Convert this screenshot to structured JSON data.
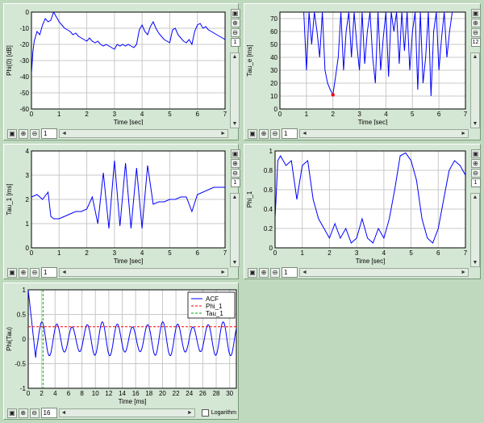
{
  "panels": {
    "p1": {
      "chart_data": {
        "type": "line",
        "xlabel": "Time [sec]",
        "ylabel": "Phi(0) [dB]",
        "xlim": [
          0,
          7
        ],
        "ylim": [
          -60,
          0
        ],
        "xticks": [
          "0",
          "1",
          "2",
          "3",
          "4",
          "5",
          "6",
          "7"
        ],
        "yticks": [
          "0",
          "-10",
          "-20",
          "-30",
          "-40",
          "-50",
          "-60"
        ],
        "grid": true,
        "series": [
          {
            "color": "#0000ff",
            "x": [
              0,
              0.05,
              0.1,
              0.2,
              0.3,
              0.4,
              0.5,
              0.6,
              0.7,
              0.8,
              0.9,
              1.0,
              1.1,
              1.2,
              1.3,
              1.4,
              1.5,
              1.6,
              1.7,
              1.8,
              1.9,
              2.0,
              2.1,
              2.2,
              2.3,
              2.4,
              2.5,
              2.6,
              2.7,
              2.8,
              2.9,
              3.0,
              3.1,
              3.2,
              3.3,
              3.4,
              3.5,
              3.6,
              3.7,
              3.8,
              3.9,
              4.0,
              4.1,
              4.2,
              4.3,
              4.4,
              4.5,
              4.6,
              4.7,
              4.8,
              4.9,
              5.0,
              5.1,
              5.2,
              5.3,
              5.4,
              5.5,
              5.6,
              5.7,
              5.8,
              5.9,
              6.0,
              6.1,
              6.2,
              6.3,
              6.4,
              6.5,
              6.6,
              6.7,
              6.8,
              6.9,
              7.0
            ],
            "y": [
              -38,
              -25,
              -18,
              -12,
              -14,
              -8,
              -4,
              -6,
              -5,
              0,
              -3,
              -6,
              -8,
              -10,
              -11,
              -12,
              -14,
              -13,
              -15,
              -16,
              -17,
              -18,
              -16,
              -18,
              -19,
              -18,
              -20,
              -21,
              -20,
              -21,
              -22,
              -23,
              -20,
              -21,
              -20,
              -21,
              -20,
              -21,
              -22,
              -20,
              -11,
              -8,
              -12,
              -14,
              -9,
              -6,
              -10,
              -13,
              -15,
              -17,
              -18,
              -19,
              -11,
              -10,
              -14,
              -16,
              -18,
              -19,
              -17,
              -20,
              -12,
              -8,
              -7,
              -10,
              -9,
              -11,
              -12,
              -13,
              -14,
              -15,
              -16,
              -17
            ]
          }
        ]
      },
      "vbar": {
        "page": "1"
      },
      "hbar": {
        "page": "1"
      }
    },
    "p2": {
      "chart_data": {
        "type": "line",
        "xlabel": "Time [sec]",
        "ylabel": "Tau_e [ms]",
        "xlim": [
          0,
          7
        ],
        "ylim": [
          0,
          75
        ],
        "xticks": [
          "0",
          "1",
          "2",
          "3",
          "4",
          "5",
          "6",
          "7"
        ],
        "yticks": [
          "0",
          "10",
          "20",
          "30",
          "40",
          "50",
          "60",
          "70"
        ],
        "grid": true,
        "marker": {
          "x": 2.0,
          "y": 11,
          "color": "#ff0000"
        },
        "series": [
          {
            "color": "#0000ff",
            "x": [
              0.9,
              1.0,
              1.1,
              1.2,
              1.3,
              1.4,
              1.5,
              1.6,
              1.7,
              1.8,
              1.9,
              2.0,
              2.1,
              2.2,
              2.3,
              2.4,
              2.5,
              2.6,
              2.7,
              2.8,
              2.9,
              3.0,
              3.1,
              3.2,
              3.3,
              3.4,
              3.5,
              3.6,
              3.7,
              3.8,
              3.9,
              4.0,
              4.1,
              4.2,
              4.3,
              4.4,
              4.5,
              4.6,
              4.7,
              4.8,
              4.9,
              5.0,
              5.1,
              5.2,
              5.3,
              5.4,
              5.5,
              5.6,
              5.7,
              5.8,
              5.9,
              6.0,
              6.1,
              6.2,
              6.3,
              6.4,
              6.5
            ],
            "y": [
              75,
              30,
              75,
              50,
              75,
              60,
              40,
              75,
              30,
              20,
              15,
              11,
              25,
              40,
              75,
              30,
              60,
              75,
              40,
              75,
              50,
              30,
              75,
              35,
              60,
              75,
              40,
              20,
              75,
              30,
              55,
              75,
              25,
              75,
              60,
              75,
              35,
              75,
              45,
              75,
              30,
              60,
              75,
              15,
              75,
              20,
              40,
              75,
              10,
              60,
              75,
              30,
              55,
              75,
              40,
              60,
              75
            ]
          }
        ]
      },
      "vbar": {
        "page": "12"
      },
      "hbar": {
        "page": "1"
      }
    },
    "p3": {
      "chart_data": {
        "type": "line",
        "xlabel": "Time [sec]",
        "ylabel": "Tau_1 [ms]",
        "xlim": [
          0,
          7
        ],
        "ylim": [
          0,
          4
        ],
        "xticks": [
          "0",
          "1",
          "2",
          "3",
          "4",
          "5",
          "6",
          "7"
        ],
        "yticks": [
          "0",
          "1",
          "2",
          "3",
          "4"
        ],
        "grid": true,
        "series": [
          {
            "color": "#0000ff",
            "x": [
              0,
              0.2,
              0.4,
              0.6,
              0.7,
              0.8,
              1.0,
              1.2,
              1.4,
              1.6,
              1.8,
              2.0,
              2.2,
              2.4,
              2.6,
              2.8,
              3.0,
              3.2,
              3.4,
              3.6,
              3.8,
              4.0,
              4.2,
              4.4,
              4.6,
              4.8,
              5.0,
              5.2,
              5.4,
              5.6,
              5.8,
              6.0,
              6.2,
              6.4,
              6.6,
              6.8,
              7.0
            ],
            "y": [
              2.1,
              2.2,
              2.0,
              2.3,
              1.3,
              1.2,
              1.2,
              1.3,
              1.4,
              1.5,
              1.5,
              1.6,
              2.1,
              1.0,
              3.1,
              0.8,
              3.6,
              0.9,
              3.5,
              0.8,
              3.3,
              0.8,
              3.4,
              1.8,
              1.9,
              1.9,
              2.0,
              2.0,
              2.1,
              2.1,
              1.5,
              2.2,
              2.3,
              2.4,
              2.5,
              2.5,
              2.5
            ]
          }
        ]
      },
      "vbar": {
        "page": "1"
      },
      "hbar": {
        "page": "1"
      }
    },
    "p4": {
      "chart_data": {
        "type": "line",
        "xlabel": "Time [sec]",
        "ylabel": "Phi_1",
        "xlim": [
          0,
          7
        ],
        "ylim": [
          0,
          1
        ],
        "xticks": [
          "0",
          "1",
          "2",
          "3",
          "4",
          "5",
          "6",
          "7"
        ],
        "yticks": [
          "0",
          "0.2",
          "0.4",
          "0.6",
          "0.8",
          "1"
        ],
        "grid": true,
        "series": [
          {
            "color": "#0000ff",
            "x": [
              0,
              0.1,
              0.2,
              0.4,
              0.6,
              0.8,
              1.0,
              1.2,
              1.4,
              1.6,
              1.8,
              2.0,
              2.2,
              2.4,
              2.6,
              2.8,
              3.0,
              3.2,
              3.4,
              3.6,
              3.8,
              4.0,
              4.2,
              4.4,
              4.6,
              4.8,
              5.0,
              5.2,
              5.4,
              5.6,
              5.8,
              6.0,
              6.2,
              6.4,
              6.6,
              6.8,
              7.0
            ],
            "y": [
              0.3,
              0.9,
              0.95,
              0.85,
              0.9,
              0.5,
              0.85,
              0.9,
              0.5,
              0.3,
              0.2,
              0.1,
              0.25,
              0.1,
              0.2,
              0.05,
              0.1,
              0.3,
              0.1,
              0.05,
              0.2,
              0.1,
              0.3,
              0.6,
              0.95,
              0.98,
              0.9,
              0.7,
              0.3,
              0.1,
              0.05,
              0.2,
              0.5,
              0.8,
              0.9,
              0.85,
              0.75
            ]
          }
        ]
      },
      "vbar": {
        "page": "1"
      },
      "hbar": {
        "page": "1"
      }
    },
    "p5": {
      "chart_data": {
        "type": "line",
        "xlabel": "Time [ms]",
        "ylabel": "Phi(Tau)",
        "xlim": [
          0,
          31
        ],
        "ylim": [
          -1,
          1
        ],
        "xticks": [
          "0",
          "2",
          "4",
          "6",
          "8",
          "10",
          "12",
          "14",
          "16",
          "18",
          "20",
          "22",
          "24",
          "26",
          "28",
          "30"
        ],
        "yticks": [
          "1",
          "0.5",
          "0",
          "-0.5",
          "-1"
        ],
        "grid": true,
        "legend": [
          "ACF",
          "Phi_1",
          "Tau_1"
        ],
        "phi1_level": 0.25,
        "tau1_position": 2.2,
        "series": [
          {
            "color": "#0000ff",
            "name": "ACF"
          }
        ]
      },
      "hbar": {
        "page": "16",
        "log_label": "Logarithm"
      }
    }
  },
  "icons": {
    "zoom_in": "⊕",
    "zoom_out": "⊖",
    "fit": "▣",
    "up": "▲",
    "down": "▼",
    "left": "◄",
    "right": "►"
  }
}
